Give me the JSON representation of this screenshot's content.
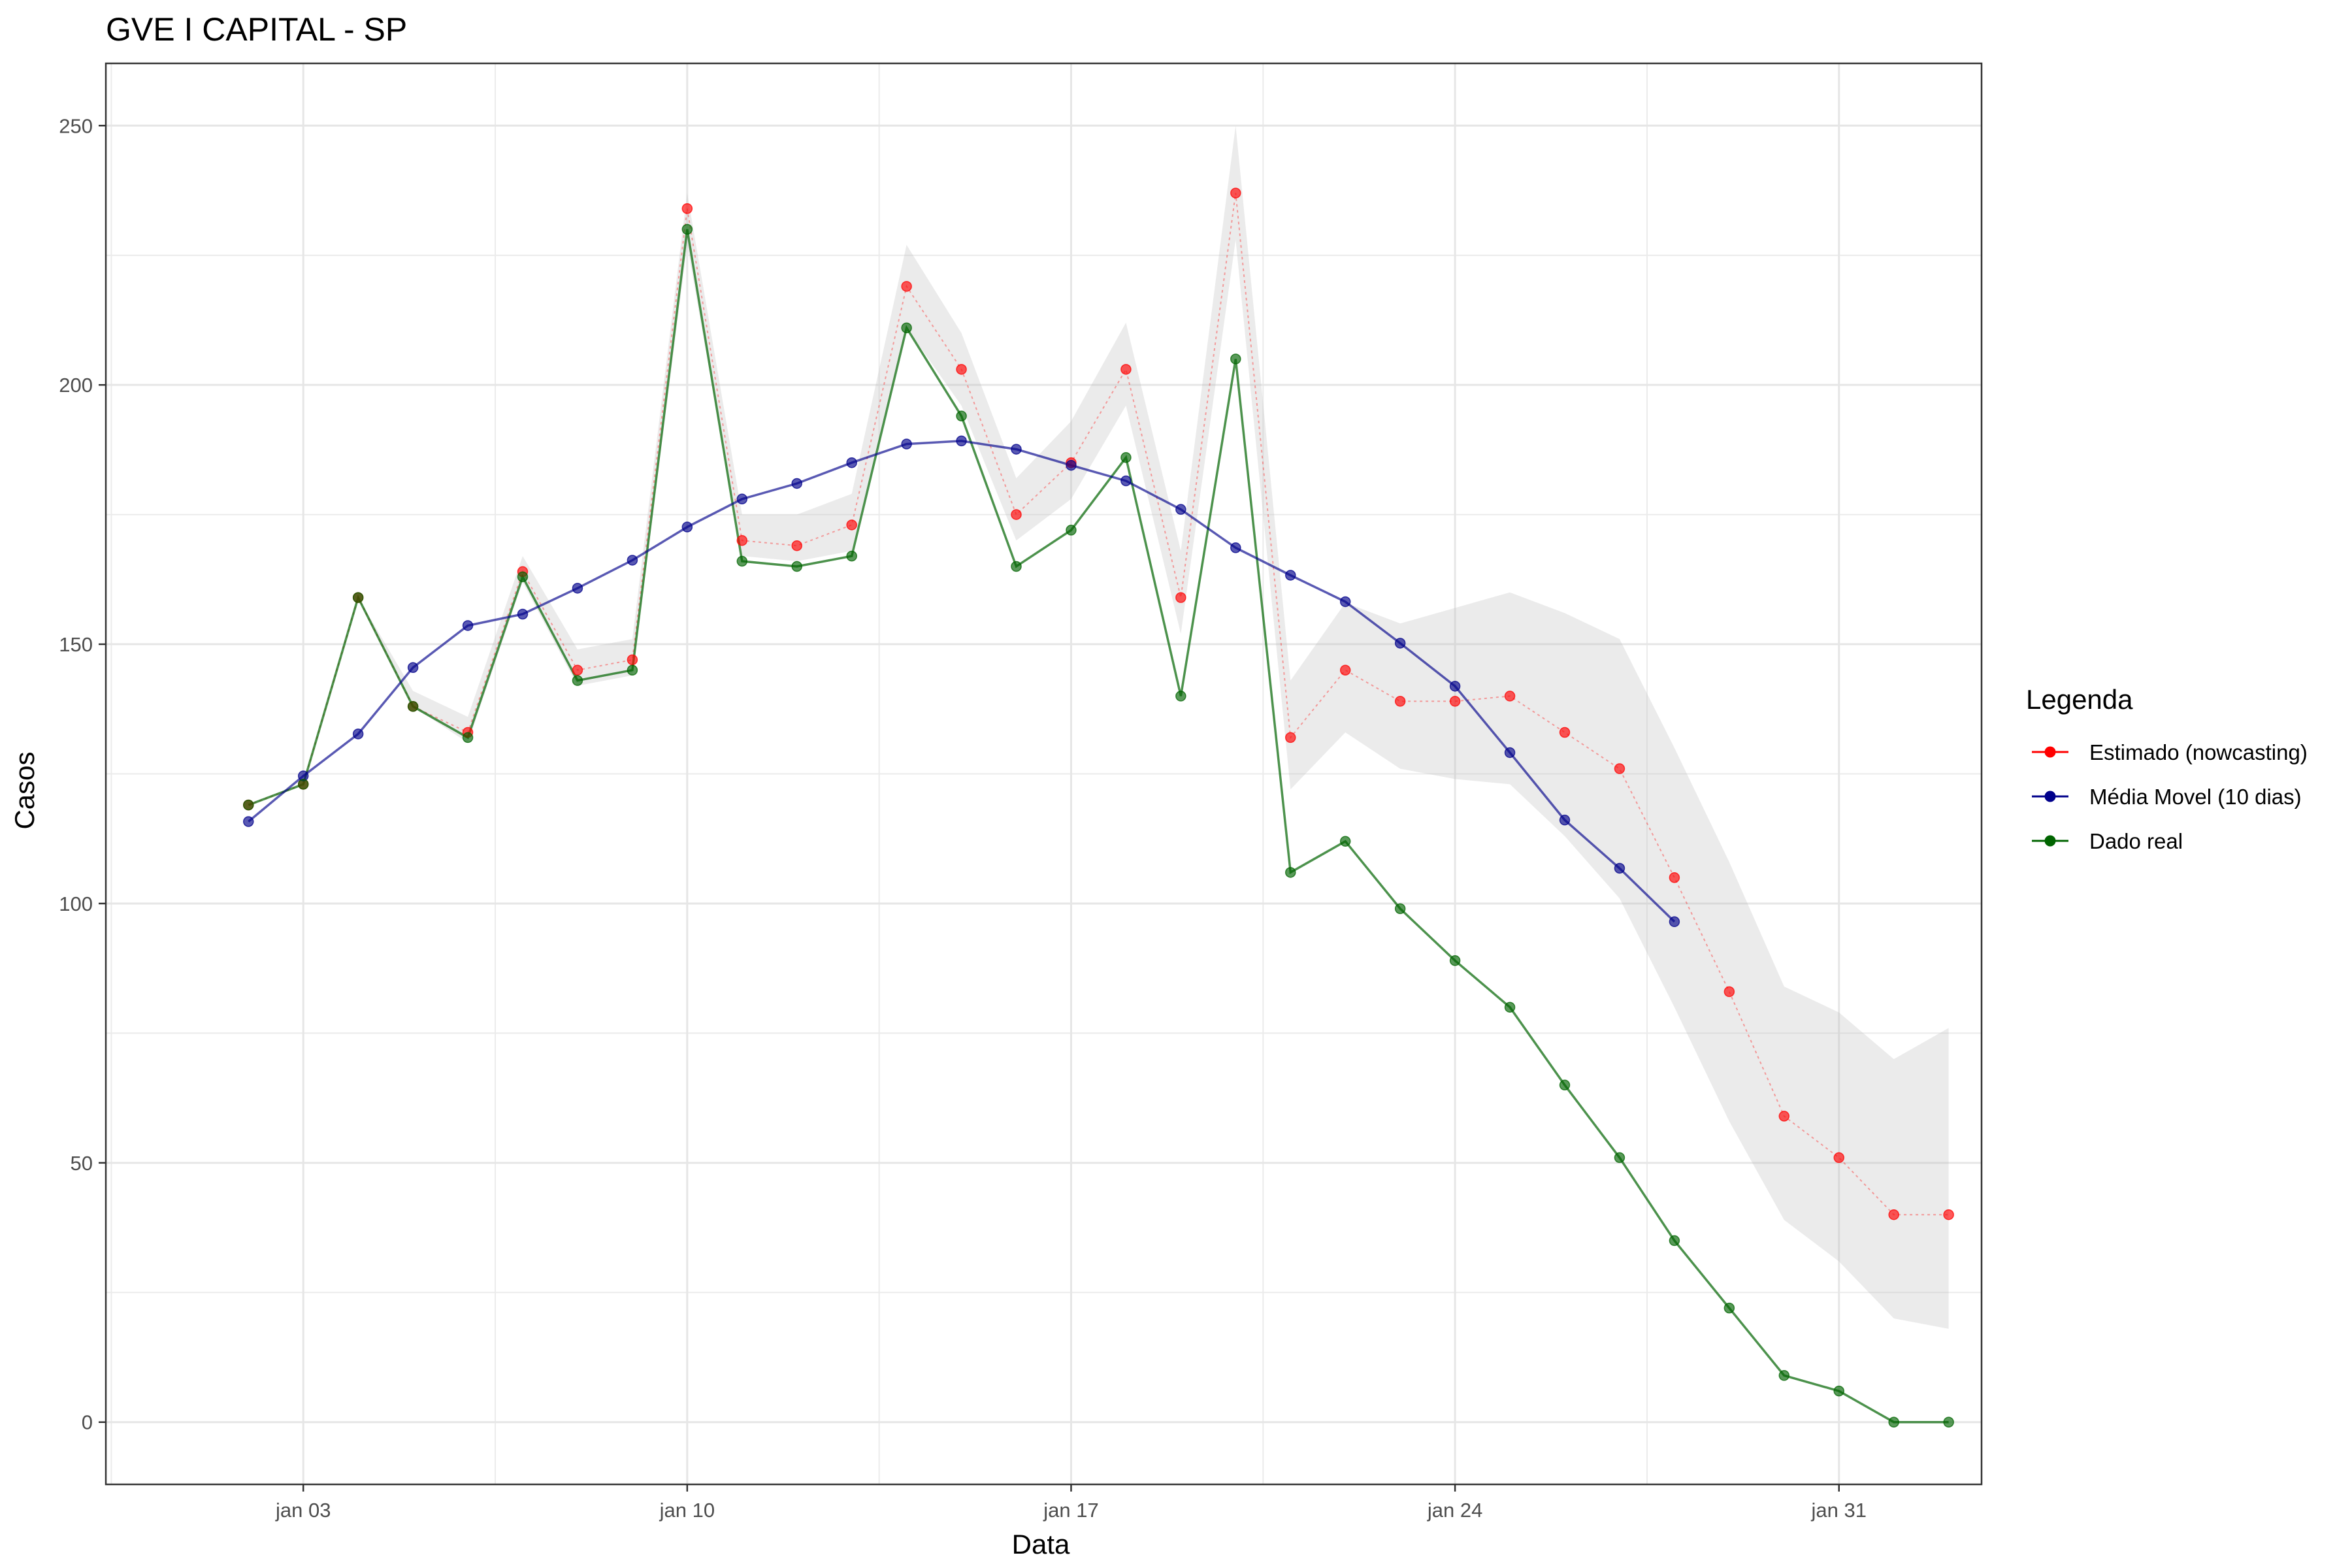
{
  "chart_data": {
    "type": "line",
    "title": "GVE I CAPITAL - SP",
    "xlabel": "Data",
    "ylabel": "Casos",
    "ylim": [
      -12,
      262
    ],
    "xlim": [
      -1.6,
      32.6
    ],
    "y_ticks": [
      0,
      50,
      100,
      150,
      200,
      250
    ],
    "x_ticks": [
      {
        "day": 2,
        "label": "jan 03"
      },
      {
        "day": 9,
        "label": "jan 10"
      },
      {
        "day": 16,
        "label": "jan 17"
      },
      {
        "day": 23,
        "label": "jan 24"
      },
      {
        "day": 30,
        "label": "jan 31"
      }
    ],
    "grid": true,
    "legend": {
      "title": "Legenda",
      "position": "right",
      "entries": [
        {
          "label": "Estimado (nowcasting)",
          "color": "#ff0000"
        },
        {
          "label": "Média Movel (10 dias)",
          "color": "#00008b"
        },
        {
          "label": "Dado real",
          "color": "#006400"
        }
      ]
    },
    "x_day_of_jan02": 1,
    "series": [
      {
        "name": "Dado real",
        "color": "#006400",
        "x": [
          1,
          2,
          3,
          4,
          5,
          6,
          7,
          8,
          9,
          10,
          11,
          12,
          13,
          14,
          15,
          16,
          17,
          18,
          19,
          20,
          21,
          22,
          23,
          24,
          25,
          26,
          27,
          28,
          29,
          30,
          31,
          32
        ],
        "values": [
          119,
          123,
          159,
          138,
          132,
          163,
          143,
          145,
          230,
          166,
          165,
          167,
          211,
          194,
          165,
          172,
          186,
          140,
          205,
          106,
          112,
          99,
          89,
          80,
          65,
          51,
          35,
          22,
          9,
          6,
          0,
          0
        ]
      },
      {
        "name": "Estimado (nowcasting)",
        "color": "#ff0000",
        "x": [
          1,
          2,
          3,
          4,
          5,
          6,
          7,
          8,
          9,
          10,
          11,
          12,
          13,
          14,
          15,
          16,
          17,
          18,
          19,
          20,
          21,
          22,
          23,
          24,
          25,
          26,
          27,
          28,
          29,
          30,
          31,
          32
        ],
        "values": [
          119,
          123,
          159,
          138,
          133,
          164,
          145,
          147,
          234,
          170,
          169,
          173,
          219,
          203,
          175,
          185,
          203,
          159,
          237,
          132,
          145,
          139,
          139,
          140,
          133,
          126,
          105,
          83,
          59,
          51,
          40,
          40
        ],
        "lower": [
          119,
          123,
          159,
          138,
          131,
          162,
          142,
          144,
          227,
          167,
          166,
          168,
          211,
          196,
          170,
          178,
          196,
          152,
          228,
          122,
          133,
          126,
          124,
          123,
          113,
          101,
          80,
          58,
          39,
          31,
          20,
          18
        ],
        "upper": [
          119,
          123,
          159,
          141,
          136,
          167,
          149,
          151,
          237,
          175,
          175,
          179,
          227,
          210,
          182,
          193,
          212,
          168,
          250,
          143,
          158,
          154,
          157,
          160,
          156,
          151,
          130,
          108,
          84,
          79,
          70,
          76
        ]
      },
      {
        "name": "Média Movel (10 dias)",
        "color": "#00008b",
        "x": [
          1,
          2,
          3,
          4,
          5,
          6,
          7,
          8,
          9,
          10,
          11,
          12,
          13,
          14,
          15,
          16,
          17,
          18,
          19,
          20,
          21,
          22,
          23,
          24,
          25,
          26,
          27
        ],
        "values": [
          115.8,
          124.6,
          132.7,
          145.5,
          153.6,
          155.8,
          160.8,
          166.2,
          172.6,
          178,
          181,
          185,
          188.6,
          189.2,
          187.6,
          184.5,
          181.5,
          176,
          168.6,
          163.3,
          158.2,
          150.2,
          141.9,
          129.1,
          116.1,
          106.8,
          96.5
        ]
      }
    ]
  }
}
